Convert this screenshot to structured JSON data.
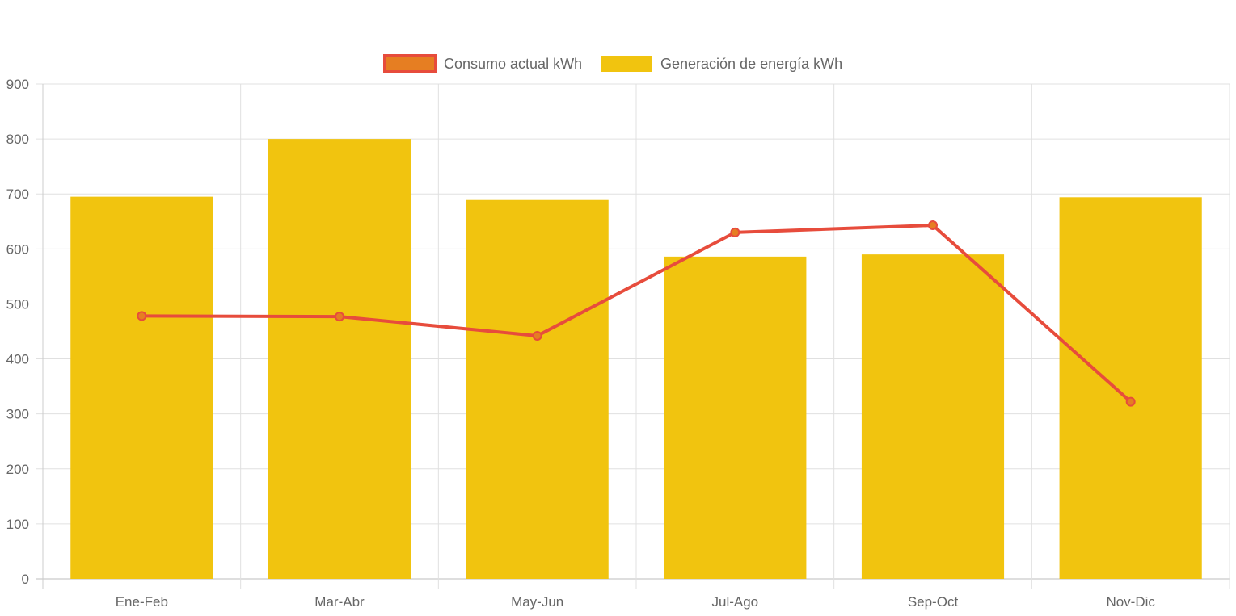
{
  "chart_data": {
    "type": "bar",
    "categories": [
      "Ene-Feb",
      "Mar-Abr",
      "May-Jun",
      "Jul-Ago",
      "Sep-Oct",
      "Nov-Dic"
    ],
    "series": [
      {
        "name": "Consumo actual kWh",
        "type": "line",
        "values": [
          478,
          477,
          442,
          630,
          643,
          322
        ],
        "color": "#e74c3c",
        "fill_color": "#e67e22"
      },
      {
        "name": "Generación de energía kWh",
        "type": "bar",
        "values": [
          695,
          800,
          689,
          586,
          590,
          694
        ],
        "color": "#f1c40f"
      }
    ],
    "y_ticks": [
      "0",
      "100",
      "200",
      "300",
      "400",
      "500",
      "600",
      "700",
      "800",
      "900"
    ],
    "ylim": [
      0,
      900
    ],
    "grid": true,
    "legend": "top-center"
  }
}
